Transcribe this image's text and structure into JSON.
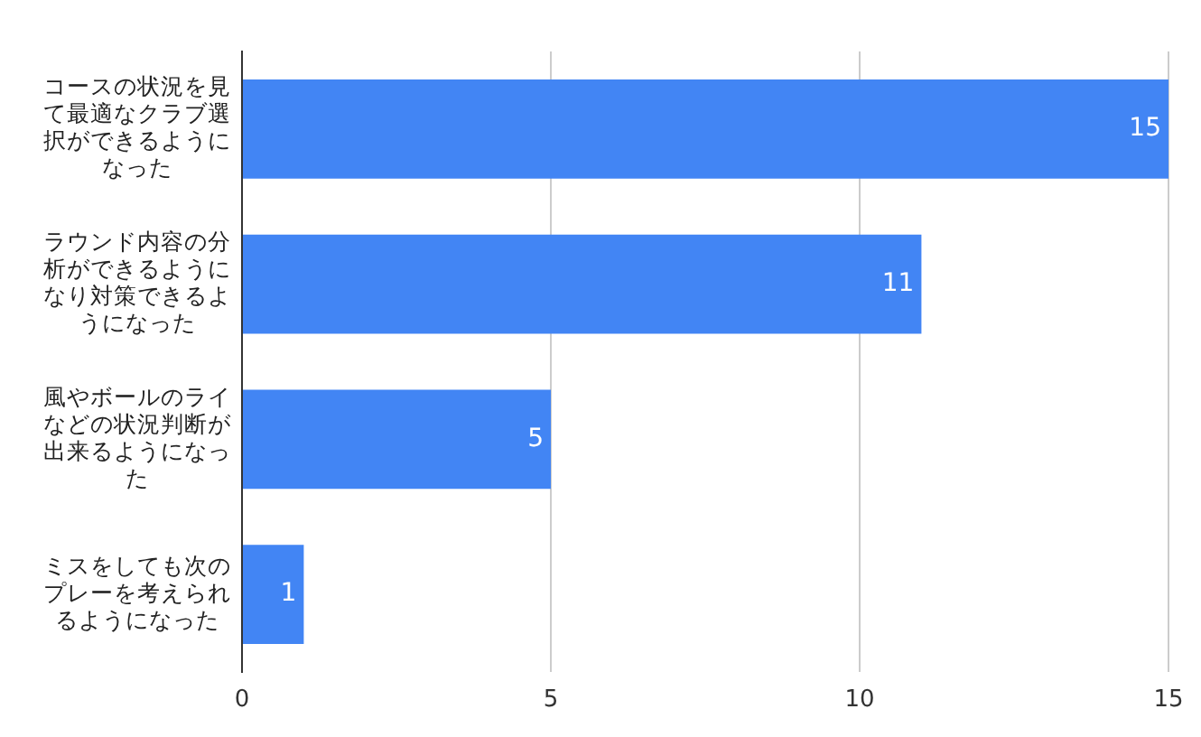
{
  "chart_data": {
    "type": "bar",
    "orientation": "horizontal",
    "categories": [
      "コースの状況を見て最適なクラブ選択ができるようになった",
      "ラウンド内容の分析ができるようになり対策できるようになった",
      "風やボールのライなどの状況判断が出来るようになった",
      "ミスをしても次のプレーを考えられるようになった"
    ],
    "values": [
      15,
      11,
      5,
      1
    ],
    "color": "#4285f4",
    "xlim": [
      0,
      15
    ],
    "xticks": [
      0,
      5,
      10,
      15
    ],
    "grid": "x",
    "data_labels": true,
    "legend": false
  }
}
